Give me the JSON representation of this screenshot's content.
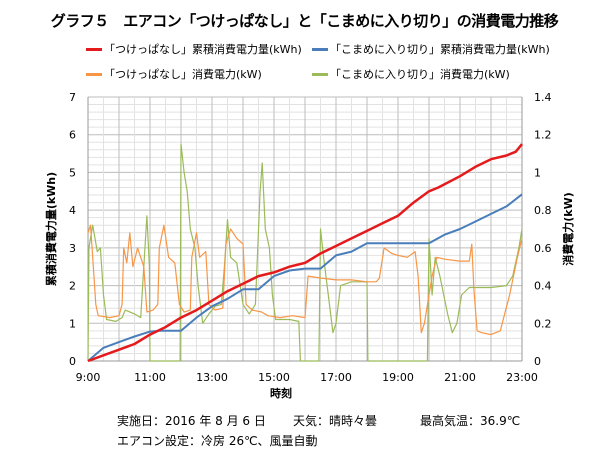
{
  "chart_data": {
    "type": "line",
    "title": "グラフ５　エアコン「つけっぱなし」と「こまめに入り切り」の消費電力推移",
    "xlabel": "時刻",
    "ylabel": "累積消費電力量(kWh)",
    "y2label": "消費電力(kW)",
    "xlim": [
      9,
      23
    ],
    "ylim": [
      0,
      7
    ],
    "y2lim": [
      0,
      1.4
    ],
    "x_ticks": [
      "9:00",
      "11:00",
      "13:00",
      "15:00",
      "17:00",
      "19:00",
      "21:00",
      "23:00"
    ],
    "y_ticks": [
      "0",
      "1",
      "2",
      "3",
      "4",
      "5",
      "6",
      "7"
    ],
    "y2_ticks": [
      "0",
      "0.2",
      "0.4",
      "0.6",
      "0.8",
      "1",
      "1.2",
      "1.4"
    ],
    "grid": true,
    "legend_position": "top",
    "series": [
      {
        "name": "「つけっぱなし」累積消費電力量(kWh)",
        "axis": "left",
        "color": "#e41a1c",
        "width": 2.5,
        "points": [
          [
            9,
            0
          ],
          [
            9.5,
            0.15
          ],
          [
            10,
            0.3
          ],
          [
            10.5,
            0.45
          ],
          [
            11,
            0.7
          ],
          [
            11.5,
            0.9
          ],
          [
            12,
            1.15
          ],
          [
            12.5,
            1.35
          ],
          [
            13,
            1.6
          ],
          [
            13.5,
            1.85
          ],
          [
            14,
            2.05
          ],
          [
            14.5,
            2.25
          ],
          [
            15,
            2.35
          ],
          [
            15.5,
            2.5
          ],
          [
            16,
            2.6
          ],
          [
            16.5,
            2.85
          ],
          [
            17,
            3.05
          ],
          [
            17.5,
            3.25
          ],
          [
            18,
            3.45
          ],
          [
            18.5,
            3.65
          ],
          [
            19,
            3.85
          ],
          [
            19.5,
            4.2
          ],
          [
            20,
            4.5
          ],
          [
            20.3,
            4.6
          ],
          [
            21,
            4.9
          ],
          [
            21.5,
            5.15
          ],
          [
            22,
            5.35
          ],
          [
            22.5,
            5.45
          ],
          [
            22.8,
            5.55
          ],
          [
            23,
            5.75
          ]
        ]
      },
      {
        "name": "「こまめに入り切り」累積消費電力量(kWh)",
        "axis": "left",
        "color": "#4a7ebb",
        "width": 2,
        "points": [
          [
            9,
            0
          ],
          [
            9.5,
            0.35
          ],
          [
            10,
            0.5
          ],
          [
            10.5,
            0.65
          ],
          [
            11,
            0.78
          ],
          [
            11.3,
            0.8
          ],
          [
            12,
            0.8
          ],
          [
            12.5,
            1.15
          ],
          [
            13,
            1.45
          ],
          [
            13.5,
            1.65
          ],
          [
            14,
            1.9
          ],
          [
            14.5,
            1.9
          ],
          [
            15,
            2.25
          ],
          [
            15.5,
            2.4
          ],
          [
            16,
            2.45
          ],
          [
            16.5,
            2.45
          ],
          [
            17,
            2.8
          ],
          [
            17.5,
            2.9
          ],
          [
            18,
            3.12
          ],
          [
            19,
            3.12
          ],
          [
            20,
            3.12
          ],
          [
            20.5,
            3.35
          ],
          [
            21,
            3.5
          ],
          [
            21.5,
            3.7
          ],
          [
            22,
            3.9
          ],
          [
            22.5,
            4.1
          ],
          [
            23,
            4.42
          ]
        ]
      },
      {
        "name": "「つけっぱなし」消費電力(kW)",
        "axis": "right",
        "color": "#f79646",
        "width": 1.2,
        "points": [
          [
            9,
            0.68
          ],
          [
            9.08,
            0.72
          ],
          [
            9.15,
            0.55
          ],
          [
            9.25,
            0.3
          ],
          [
            9.33,
            0.24
          ],
          [
            9.7,
            0.23
          ],
          [
            10,
            0.24
          ],
          [
            10.1,
            0.3
          ],
          [
            10.15,
            0.6
          ],
          [
            10.25,
            0.52
          ],
          [
            10.35,
            0.68
          ],
          [
            10.45,
            0.5
          ],
          [
            10.6,
            0.6
          ],
          [
            10.8,
            0.5
          ],
          [
            10.9,
            0.26
          ],
          [
            11.1,
            0.27
          ],
          [
            11.25,
            0.3
          ],
          [
            11.3,
            0.6
          ],
          [
            11.45,
            0.72
          ],
          [
            11.6,
            0.55
          ],
          [
            11.8,
            0.52
          ],
          [
            11.95,
            0.3
          ],
          [
            12.1,
            0.26
          ],
          [
            12.3,
            0.27
          ],
          [
            12.35,
            0.55
          ],
          [
            12.5,
            0.68
          ],
          [
            12.6,
            0.55
          ],
          [
            12.8,
            0.58
          ],
          [
            12.9,
            0.3
          ],
          [
            13.1,
            0.27
          ],
          [
            13.35,
            0.28
          ],
          [
            13.45,
            0.62
          ],
          [
            13.6,
            0.7
          ],
          [
            13.8,
            0.65
          ],
          [
            14,
            0.62
          ],
          [
            14.1,
            0.3
          ],
          [
            14.3,
            0.27
          ],
          [
            14.6,
            0.26
          ],
          [
            14.8,
            0.24
          ],
          [
            15.2,
            0.23
          ],
          [
            15.6,
            0.24
          ],
          [
            16,
            0.23
          ],
          [
            16.1,
            0.45
          ],
          [
            16.5,
            0.44
          ],
          [
            17,
            0.43
          ],
          [
            17.5,
            0.43
          ],
          [
            18,
            0.42
          ],
          [
            18.3,
            0.42
          ],
          [
            18.4,
            0.44
          ],
          [
            18.55,
            0.6
          ],
          [
            18.8,
            0.57
          ],
          [
            19,
            0.56
          ],
          [
            19.3,
            0.55
          ],
          [
            19.55,
            0.58
          ],
          [
            19.65,
            0.45
          ],
          [
            19.75,
            0.15
          ],
          [
            19.85,
            0.2
          ],
          [
            20.1,
            0.45
          ],
          [
            20.25,
            0.55
          ],
          [
            20.5,
            0.54
          ],
          [
            21,
            0.53
          ],
          [
            21.3,
            0.53
          ],
          [
            21.38,
            0.62
          ],
          [
            21.45,
            0.38
          ],
          [
            21.55,
            0.16
          ],
          [
            21.7,
            0.15
          ],
          [
            22,
            0.14
          ],
          [
            22.3,
            0.16
          ],
          [
            22.6,
            0.35
          ],
          [
            22.85,
            0.55
          ],
          [
            23,
            0.65
          ]
        ]
      },
      {
        "name": "「こまめに入り切り」消費電力(kW)",
        "axis": "right",
        "color": "#9bbb59",
        "width": 1.2,
        "points": [
          [
            9,
            0
          ],
          [
            9.03,
            0.6
          ],
          [
            9.15,
            0.72
          ],
          [
            9.3,
            0.58
          ],
          [
            9.4,
            0.6
          ],
          [
            9.5,
            0.35
          ],
          [
            9.6,
            0.22
          ],
          [
            9.9,
            0.21
          ],
          [
            10.1,
            0.23
          ],
          [
            10.2,
            0.27
          ],
          [
            10.5,
            0.25
          ],
          [
            10.7,
            0.23
          ],
          [
            10.8,
            0.5
          ],
          [
            10.9,
            0.77
          ],
          [
            10.98,
            0.5
          ],
          [
            11,
            0
          ],
          [
            11.97,
            0
          ],
          [
            12,
            1.15
          ],
          [
            12.1,
            1.0
          ],
          [
            12.2,
            0.9
          ],
          [
            12.3,
            0.7
          ],
          [
            12.45,
            0.6
          ],
          [
            12.55,
            0.4
          ],
          [
            12.7,
            0.2
          ],
          [
            12.9,
            0.25
          ],
          [
            13.1,
            0.29
          ],
          [
            13.3,
            0.3
          ],
          [
            13.4,
            0.5
          ],
          [
            13.5,
            0.75
          ],
          [
            13.6,
            0.55
          ],
          [
            13.8,
            0.52
          ],
          [
            14,
            0.3
          ],
          [
            14.2,
            0.25
          ],
          [
            14.4,
            0.3
          ],
          [
            14.55,
            0.9
          ],
          [
            14.62,
            1.05
          ],
          [
            14.72,
            0.7
          ],
          [
            14.85,
            0.6
          ],
          [
            14.95,
            0.35
          ],
          [
            15.05,
            0.22
          ],
          [
            15.5,
            0.22
          ],
          [
            15.8,
            0.21
          ],
          [
            15.85,
            0
          ],
          [
            16.45,
            0
          ],
          [
            16.5,
            0.7
          ],
          [
            16.6,
            0.55
          ],
          [
            16.75,
            0.35
          ],
          [
            16.9,
            0.15
          ],
          [
            17,
            0.2
          ],
          [
            17.15,
            0.4
          ],
          [
            17.5,
            0.42
          ],
          [
            18.0,
            0.42
          ],
          [
            18.03,
            0
          ],
          [
            19.95,
            0
          ],
          [
            20,
            0.65
          ],
          [
            20.1,
            0.35
          ],
          [
            20.2,
            0.55
          ],
          [
            20.35,
            0.45
          ],
          [
            20.6,
            0.25
          ],
          [
            20.75,
            0.15
          ],
          [
            20.9,
            0.2
          ],
          [
            21.05,
            0.35
          ],
          [
            21.3,
            0.39
          ],
          [
            22,
            0.39
          ],
          [
            22.5,
            0.4
          ],
          [
            22.7,
            0.45
          ],
          [
            22.9,
            0.6
          ],
          [
            23,
            0.7
          ]
        ]
      }
    ]
  },
  "legend": [
    "「つけっぱなし」累積消費電力量(kWh)",
    "「こまめに入り切り」累積消費電力量(kWh)",
    "「つけっぱなし」消費電力(kW)",
    "「こまめに入り切り」消費電力(kW)"
  ],
  "notes": {
    "date": "実施日：2016 年 8 月 6 日",
    "weather": "天気：晴時々曇",
    "max_temp": "最高気温：36.9℃",
    "ac_setting": "エアコン設定：冷房 26℃、風量自動"
  }
}
